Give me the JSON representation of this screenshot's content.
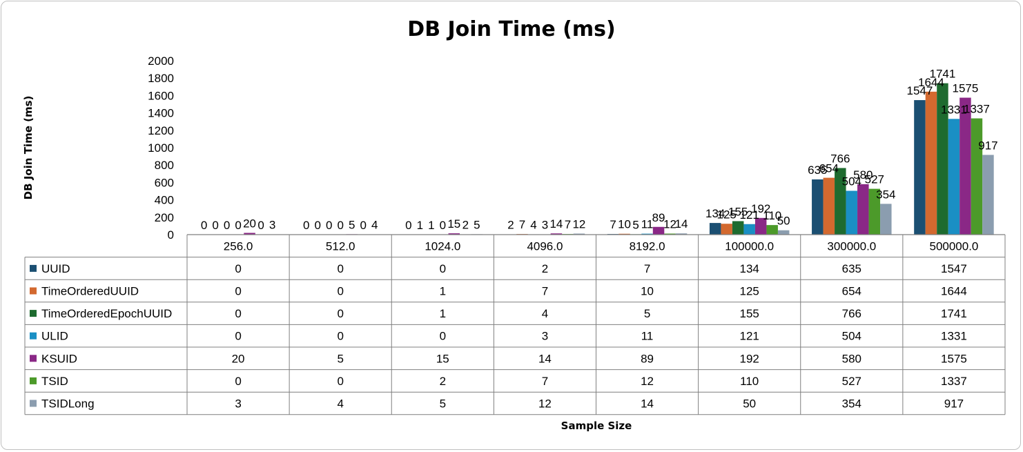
{
  "chart_data": {
    "type": "bar",
    "title": "DB Join Time (ms)",
    "xlabel": "Sample Size",
    "ylabel": "DB Join Time (ms)",
    "ylim": [
      0,
      2000
    ],
    "yticks": [
      0,
      200,
      400,
      600,
      800,
      1000,
      1200,
      1400,
      1600,
      1800,
      2000
    ],
    "categories": [
      "256.0",
      "512.0",
      "1024.0",
      "4096.0",
      "8192.0",
      "100000.0",
      "300000.0",
      "500000.0"
    ],
    "grid": false,
    "legend": "data table below chart",
    "series": [
      {
        "name": "UUID",
        "color": "#1b4f72",
        "values": [
          0,
          0,
          0,
          2,
          7,
          134,
          635,
          1547
        ]
      },
      {
        "name": "TimeOrderedUUID",
        "color": "#d3692f",
        "values": [
          0,
          0,
          1,
          7,
          10,
          125,
          654,
          1644
        ]
      },
      {
        "name": "TimeOrderedEpochUUID",
        "color": "#1e6b2f",
        "values": [
          0,
          0,
          1,
          4,
          5,
          155,
          766,
          1741
        ]
      },
      {
        "name": "ULID",
        "color": "#1a8fc4",
        "values": [
          0,
          0,
          0,
          3,
          11,
          121,
          504,
          1331
        ]
      },
      {
        "name": "KSUID",
        "color": "#8a2886",
        "values": [
          20,
          5,
          15,
          14,
          89,
          192,
          580,
          1575
        ]
      },
      {
        "name": "TSID",
        "color": "#4c9a2a",
        "values": [
          0,
          0,
          2,
          7,
          12,
          110,
          527,
          1337
        ]
      },
      {
        "name": "TSIDLong",
        "color": "#8b9daf",
        "values": [
          3,
          4,
          5,
          12,
          14,
          50,
          354,
          917
        ]
      }
    ]
  }
}
